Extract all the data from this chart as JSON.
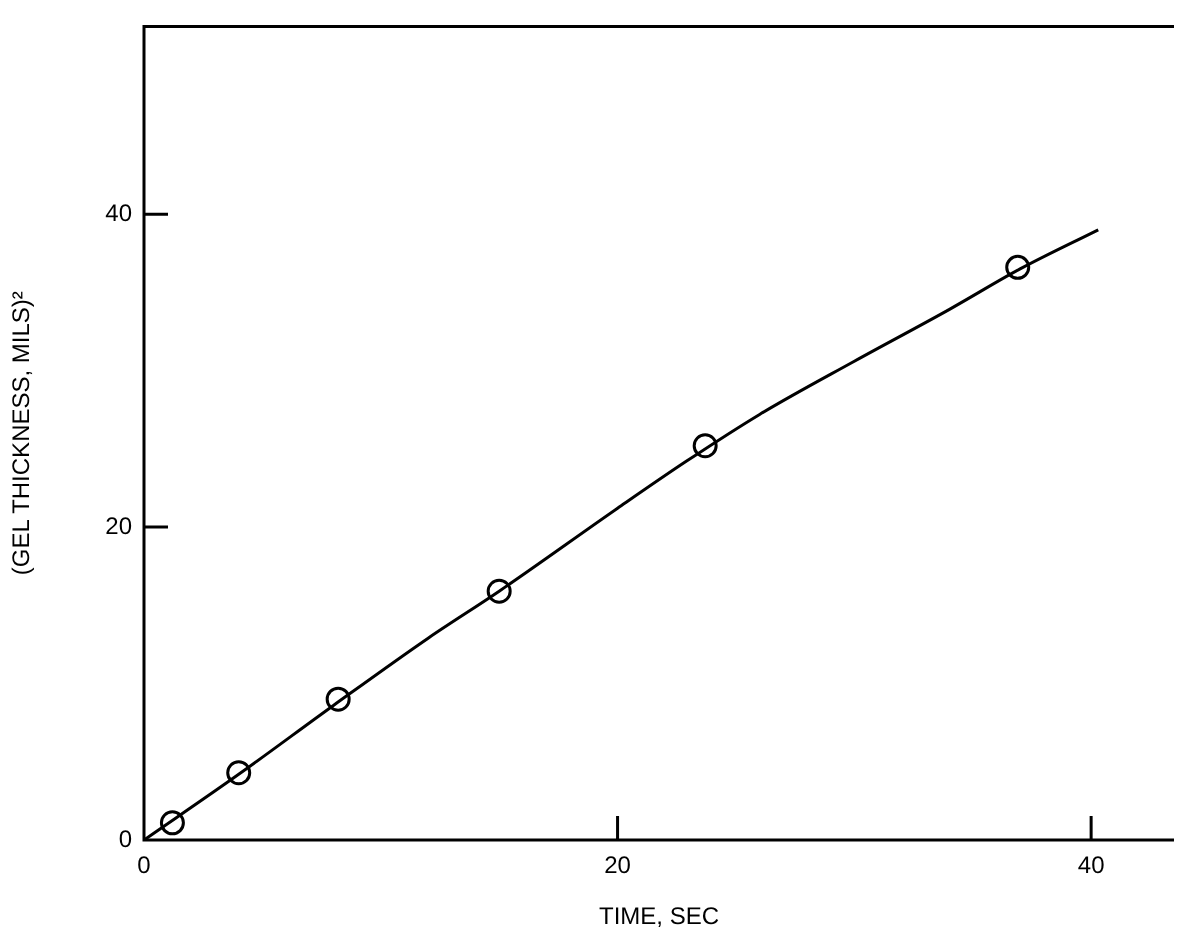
{
  "chart_data": {
    "type": "scatter",
    "xlabel": "TIME, SEC",
    "ylabel": "(GEL THICKNESS, MILS)²",
    "xlim": [
      0,
      43.5
    ],
    "ylim": [
      0,
      52
    ],
    "xticks": [
      0,
      20,
      40
    ],
    "yticks": [
      0,
      20,
      40
    ],
    "grid": false,
    "legend": false,
    "series": [
      {
        "color": "#000000",
        "marker": "circle",
        "x": [
          1.2,
          4.0,
          8.2,
          15.0,
          23.7,
          36.9
        ],
        "values": [
          1.1,
          4.3,
          9.0,
          15.9,
          25.2,
          36.6
        ]
      },
      {
        "type": "line",
        "color": "#000000",
        "marker": "none",
        "line_style": "solid",
        "x": [
          0,
          4,
          8,
          12,
          15,
          20,
          22.9,
          26,
          30,
          34,
          37,
          40.3
        ],
        "values": [
          0,
          4.2,
          8.6,
          12.9,
          15.9,
          21.2,
          24.2,
          27.2,
          30.6,
          33.9,
          36.5,
          39.0
        ]
      }
    ]
  }
}
